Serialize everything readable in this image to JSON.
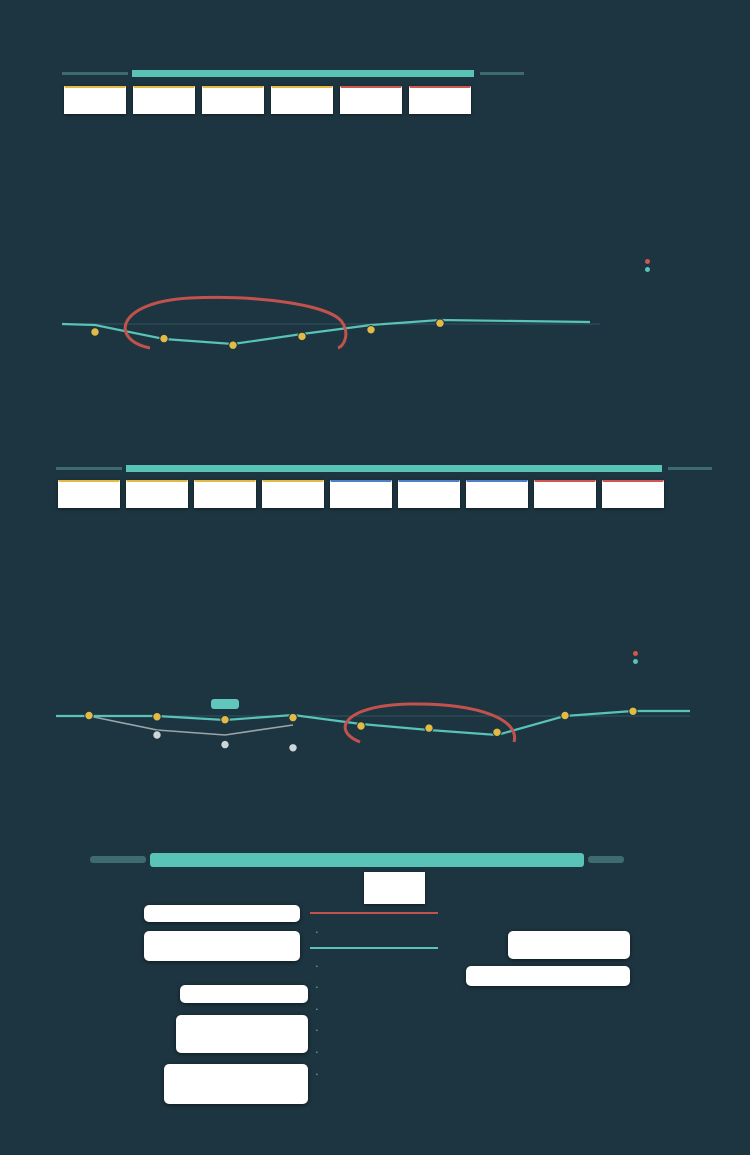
{
  "map1": {
    "stages": [
      "",
      "",
      "",
      "",
      "",
      ""
    ],
    "stage_colors": [
      "gold",
      "gold",
      "gold",
      "gold",
      "red",
      "red"
    ],
    "columns": [
      [
        "",
        "",
        ""
      ],
      [
        "",
        "",
        ""
      ],
      [
        "",
        "",
        "",
        "",
        "",
        "",
        ""
      ],
      [
        "",
        "",
        ""
      ],
      [
        "",
        ""
      ],
      [
        "",
        "",
        ""
      ]
    ],
    "legend": [
      "",
      ""
    ],
    "axis_label": "",
    "curve_levels": [
      0.5,
      0.35,
      0.2,
      0.4,
      0.55,
      0.7
    ]
  },
  "map2": {
    "stages": [
      "",
      "",
      "",
      "",
      "",
      "",
      "",
      "",
      ""
    ],
    "stage_colors": [
      "gold",
      "gold",
      "gold",
      "gold",
      "blue",
      "blue",
      "blue",
      "red",
      "red"
    ],
    "columns": [
      [
        "",
        "",
        ""
      ],
      [
        "",
        "",
        ""
      ],
      [
        "",
        "",
        "",
        "",
        "",
        "",
        ""
      ],
      [
        "",
        "",
        ""
      ],
      [
        "",
        "",
        "",
        ""
      ],
      [
        "",
        "",
        "",
        "",
        ""
      ],
      [
        "",
        "",
        "",
        ""
      ],
      [
        "",
        ""
      ],
      [
        "",
        "",
        ""
      ]
    ],
    "legend": [
      "",
      ""
    ],
    "axis_label": "",
    "highlight_badge": "",
    "curve_levels": [
      0.75,
      0.72,
      0.65,
      0.7,
      0.5,
      0.45,
      0.35,
      0.75,
      0.85
    ],
    "secondary_levels": [
      0.75,
      0.45,
      0.35,
      0.5
    ]
  },
  "map3": {
    "tabs": [
      "",
      "",
      "",
      "",
      "",
      "",
      "",
      "",
      "",
      ""
    ],
    "active_tab": "",
    "bullets": [
      "",
      "",
      "",
      "",
      "",
      "",
      ""
    ],
    "left_notes": [
      "",
      "",
      "",
      "",
      ""
    ],
    "right_notes": [
      "",
      ""
    ]
  },
  "colors": {
    "background": "#1d3540",
    "teal": "#58c3b6",
    "gold": "#e3ba45",
    "red": "#d0564f",
    "blue": "#4f7fc9"
  }
}
